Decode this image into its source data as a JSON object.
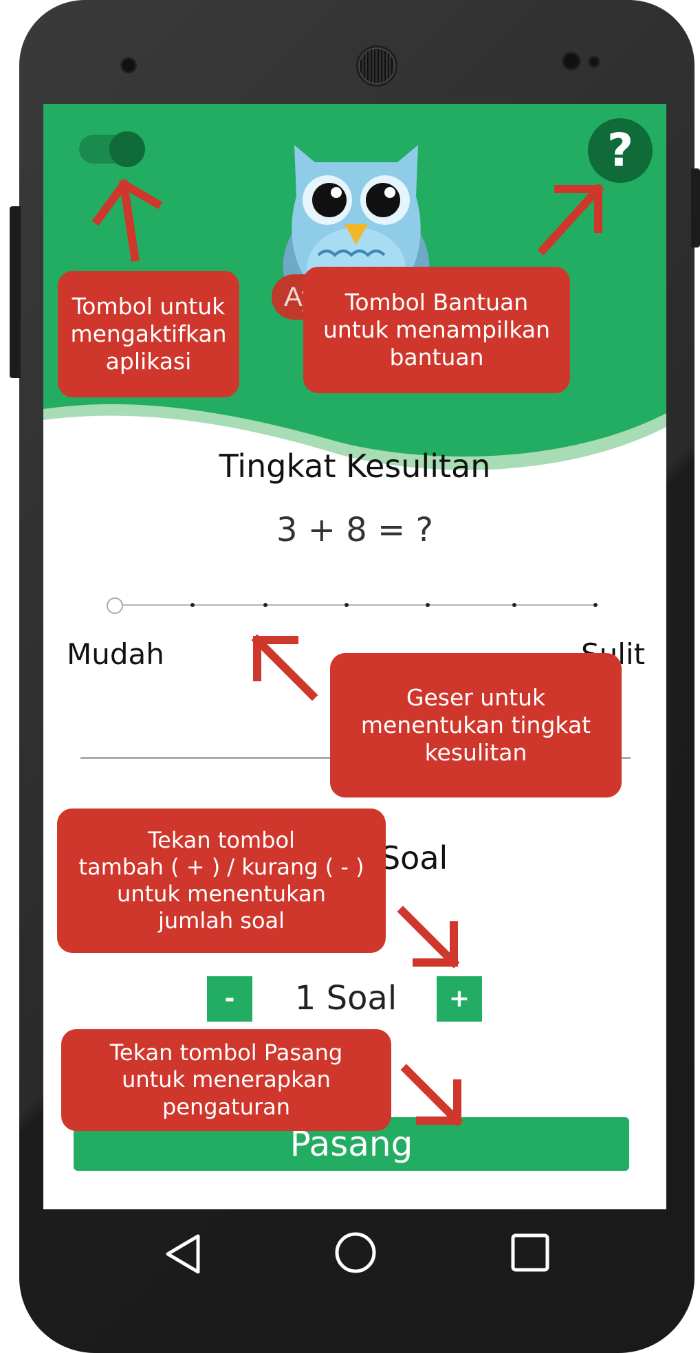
{
  "screen": {
    "greeting_text": "Ayo mulai",
    "help_label": "?",
    "difficulty": {
      "title": "Tingkat Kesulitan",
      "example_question": "3 + 8 = ?",
      "label_easy": "Mudah",
      "label_hard": "Sulit",
      "level_count": 7,
      "selected_level": 1
    },
    "question_count": {
      "title": "Jumlah Soal",
      "minus_label": "-",
      "plus_label": "+",
      "value": "1 Soal"
    },
    "apply_button_label": "Pasang",
    "toggle_enabled": true
  },
  "tutorial": {
    "toggle_hint": "Tombol untuk\nmengaktifkan\naplikasi",
    "help_hint": "Tombol Bantuan\nuntuk menampilkan\nbantuan",
    "slider_hint": "Geser untuk\nmenentukan tingkat\nkesulitan",
    "count_hint": "Tekan tombol\ntambah ( + ) / kurang ( - )\nuntuk menentukan\njumlah soal",
    "apply_hint": "Tekan tombol Pasang\nuntuk menerapkan\npengaturan"
  },
  "navbar": {
    "icons": [
      "back-icon",
      "home-icon",
      "recents-icon"
    ]
  },
  "colors": {
    "primary_green": "#22ad62",
    "dark_green": "#0f6b38",
    "callout_red": "#d0372c",
    "arrow_red": "#d0372c",
    "phone_body": "#2a2a2a"
  }
}
